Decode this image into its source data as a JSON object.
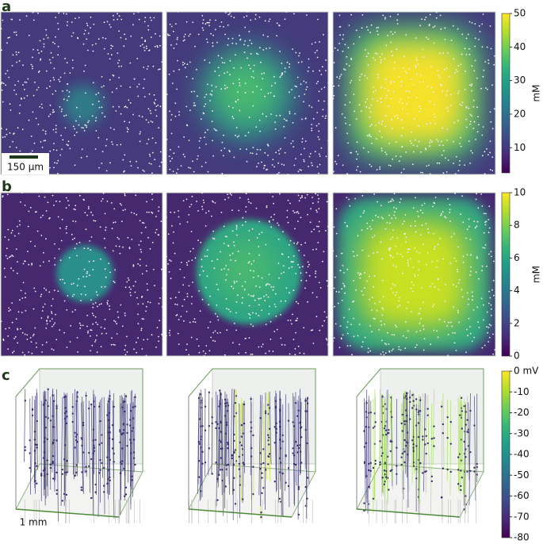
{
  "panels": [
    {
      "label": "a",
      "scale_bar": "150 μm",
      "colorbar": {
        "label": "mM",
        "lim": [
          2.5,
          50
        ],
        "ticks": [
          10,
          20,
          30,
          40,
          50
        ]
      }
    },
    {
      "label": "b",
      "colorbar": {
        "label": "mM",
        "lim": [
          0,
          10
        ],
        "ticks": [
          0,
          2,
          4,
          6,
          8,
          10
        ]
      }
    },
    {
      "label": "c",
      "scale_bar": "1 mm",
      "colorbar": {
        "lim": [
          -80,
          0
        ],
        "ticks": [
          {
            "value": 0,
            "label": "0 mV"
          },
          -10,
          -20,
          -30,
          -40,
          -50,
          -60,
          -70,
          -80
        ]
      }
    }
  ]
}
